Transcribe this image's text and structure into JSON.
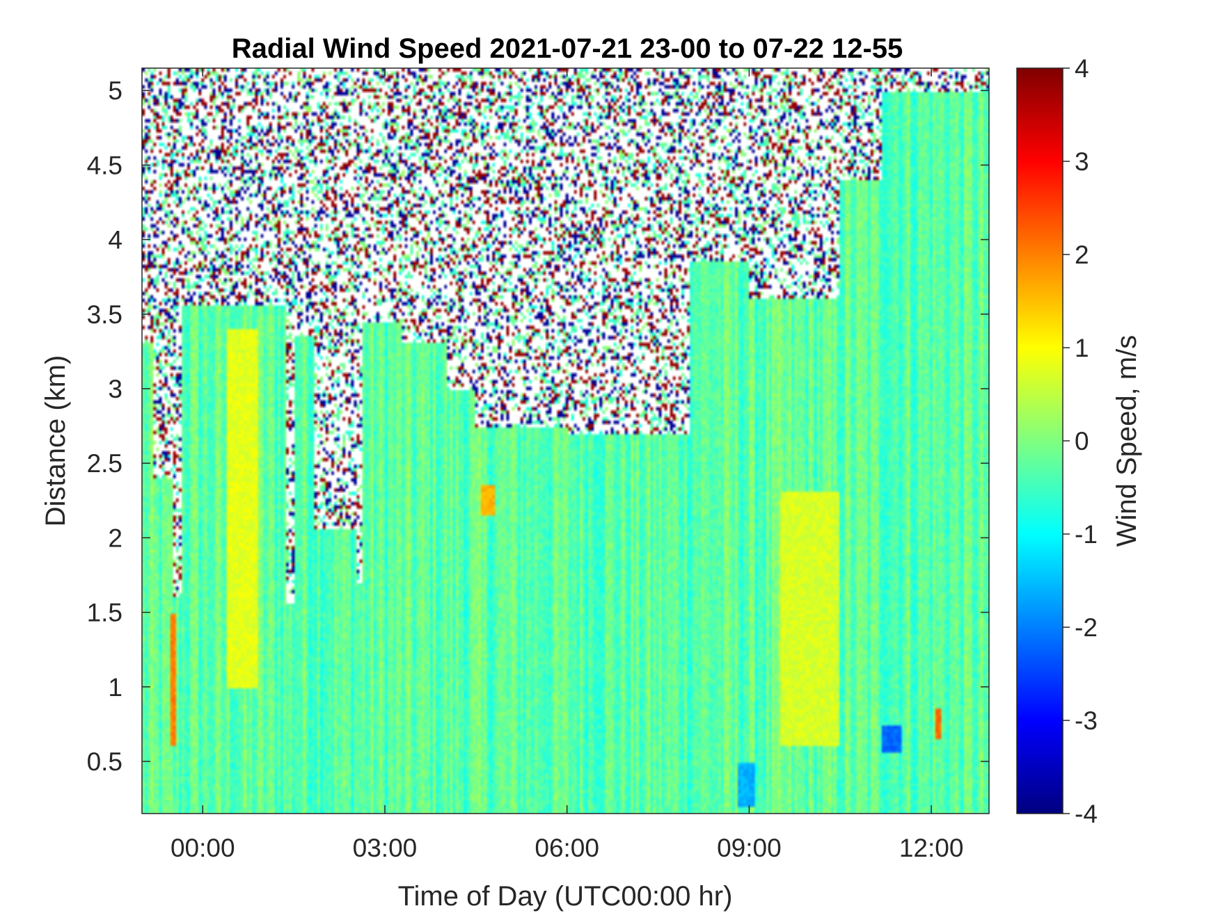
{
  "chart_data": {
    "type": "heatmap",
    "title": "Radial Wind Speed 2021-07-21 23-00 to 07-22 12-55",
    "xlabel": "Time of Day (UTC00:00 hr)",
    "ylabel": "Distance (km)",
    "colorbar_label": "Wind Speed, m/s",
    "colormap": "jet",
    "xlim_hours": [
      -1.0,
      12.95
    ],
    "ylim_km": [
      0.15,
      5.15
    ],
    "clim": [
      -4,
      4
    ],
    "x_ticks": [
      {
        "value": 0,
        "label": "00:00"
      },
      {
        "value": 3,
        "label": "03:00"
      },
      {
        "value": 6,
        "label": "06:00"
      },
      {
        "value": 9,
        "label": "09:00"
      },
      {
        "value": 12,
        "label": "12:00"
      }
    ],
    "y_ticks": [
      {
        "value": 0.5,
        "label": "0.5"
      },
      {
        "value": 1,
        "label": "1"
      },
      {
        "value": 1.5,
        "label": "1.5"
      },
      {
        "value": 2,
        "label": "2"
      },
      {
        "value": 2.5,
        "label": "2.5"
      },
      {
        "value": 3,
        "label": "3"
      },
      {
        "value": 3.5,
        "label": "3.5"
      },
      {
        "value": 4,
        "label": "4"
      },
      {
        "value": 4.5,
        "label": "4.5"
      },
      {
        "value": 5,
        "label": "5"
      }
    ],
    "colorbar_ticks": [
      {
        "value": 4,
        "label": "4"
      },
      {
        "value": 3,
        "label": "3"
      },
      {
        "value": 2,
        "label": "2"
      },
      {
        "value": 1,
        "label": "1"
      },
      {
        "value": 0,
        "label": "0"
      },
      {
        "value": -1,
        "label": "-1"
      },
      {
        "value": -2,
        "label": "-2"
      },
      {
        "value": -3,
        "label": "-3"
      },
      {
        "value": -4,
        "label": "-4"
      }
    ],
    "typical_value_ms": -0.3,
    "valid_data_top_km": [
      {
        "t": -1.0,
        "top": 3.3
      },
      {
        "t": -0.8,
        "top": 2.4
      },
      {
        "t": -0.5,
        "top": 1.6
      },
      {
        "t": -0.35,
        "top": 3.55
      },
      {
        "t": 1.3,
        "top": 3.55
      },
      {
        "t": 1.35,
        "top": 1.55
      },
      {
        "t": 1.5,
        "top": 3.35
      },
      {
        "t": 1.85,
        "top": 2.05
      },
      {
        "t": 2.55,
        "top": 1.7
      },
      {
        "t": 2.65,
        "top": 3.45
      },
      {
        "t": 3.3,
        "top": 3.3
      },
      {
        "t": 4.0,
        "top": 3.0
      },
      {
        "t": 4.5,
        "top": 2.75
      },
      {
        "t": 6.0,
        "top": 2.7
      },
      {
        "t": 7.5,
        "top": 2.7
      },
      {
        "t": 8.0,
        "top": 3.85
      },
      {
        "t": 9.0,
        "top": 3.6
      },
      {
        "t": 10.5,
        "top": 4.4
      },
      {
        "t": 11.2,
        "top": 5.0
      },
      {
        "t": 12.95,
        "top": 5.0
      }
    ],
    "features": [
      {
        "t_start": -0.55,
        "t_end": -0.45,
        "d_start": 0.6,
        "d_end": 1.5,
        "value": 2.0
      },
      {
        "t_start": 4.6,
        "t_end": 4.8,
        "d_start": 2.15,
        "d_end": 2.35,
        "value": 1.6
      },
      {
        "t_start": 12.05,
        "t_end": 12.15,
        "d_start": 0.65,
        "d_end": 0.85,
        "value": 2.2
      },
      {
        "t_start": 8.8,
        "t_end": 9.1,
        "d_start": 0.2,
        "d_end": 0.5,
        "value": -1.6
      },
      {
        "t_start": 11.2,
        "t_end": 11.5,
        "d_start": 0.55,
        "d_end": 0.75,
        "value": -2.2
      },
      {
        "t_start": 0.4,
        "t_end": 0.9,
        "d_start": 1.0,
        "d_end": 3.4,
        "value": 0.8
      },
      {
        "t_start": 9.5,
        "t_end": 10.5,
        "d_start": 0.6,
        "d_end": 2.3,
        "value": 0.7
      }
    ]
  }
}
